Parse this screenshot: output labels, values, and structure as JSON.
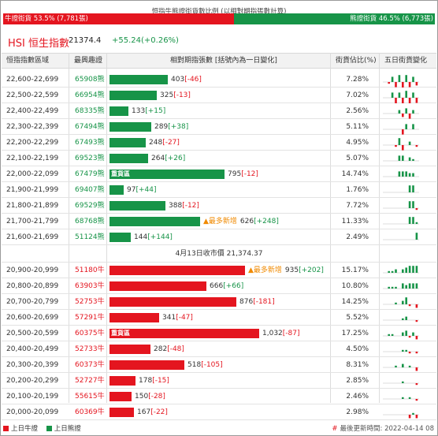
{
  "ratio": {
    "title": "恒指牛熊證街貨數比例 (以相對期指張數計算)",
    "bull_label": "牛證街貨 53.5% (7,781張)",
    "bear_label": "熊證街貨 46.5% (6,773張)",
    "bull_pct": 53.5
  },
  "index": {
    "name": "HSI 恒生指數",
    "value": "21374.4",
    "change": "+55.24(+0.26%)"
  },
  "headers": {
    "range": "恒指指數區域",
    "code": "最興趣證",
    "contracts": "相對期指張數 [括號內為一日變化]",
    "ratio": "街貨佔比(%)",
    "five_day": "五日街貨變化"
  },
  "colors": {
    "bull": "#e4151f",
    "bear": "#179448",
    "new_highlight": "#f08a00"
  },
  "heavy_label": "重貨區",
  "new_label": "▲最多新增",
  "bear_rows": [
    {
      "range": "22,600-22,699",
      "code": "65908熊",
      "qty": 403,
      "qty_text": "403",
      "chg": "[-46]",
      "pct": "7.28%",
      "spark": [
        0,
        -1,
        3,
        -3,
        4,
        -4,
        4,
        -3,
        3,
        -2
      ]
    },
    {
      "range": "22,500-22,599",
      "code": "66954熊",
      "qty": 325,
      "qty_text": "325",
      "chg": "[-13]",
      "pct": "7.02%",
      "spark": [
        0,
        0,
        3,
        -4,
        3,
        -4,
        4,
        -4,
        3,
        -3
      ]
    },
    {
      "range": "22,400-22,499",
      "code": "68335熊",
      "qty": 133,
      "qty_text": "133",
      "chg": "[+15]",
      "pct": "2.56%",
      "spark": [
        0,
        0,
        0,
        0,
        2,
        -2,
        3,
        -3,
        2,
        0
      ]
    },
    {
      "range": "22,300-22,399",
      "code": "67494熊",
      "qty": 289,
      "qty_text": "289",
      "chg": "[+38]",
      "pct": "5.11%",
      "spark": [
        0,
        0,
        0,
        0,
        0,
        -3,
        3,
        0,
        3,
        0
      ]
    },
    {
      "range": "22,200-22,299",
      "code": "67493熊",
      "qty": 248,
      "qty_text": "248",
      "chg": "[-27]",
      "pct": "4.95%",
      "spark": [
        0,
        0,
        0,
        -1,
        4,
        -3,
        0,
        2,
        0,
        -1
      ]
    },
    {
      "range": "22,100-22,199",
      "code": "69523熊",
      "qty": 264,
      "qty_text": "264",
      "chg": "[+26]",
      "pct": "5.07%",
      "spark": [
        0,
        0,
        0,
        0,
        3,
        3,
        0,
        2,
        1,
        0
      ]
    },
    {
      "range": "22,000-22,099",
      "code": "67479熊",
      "qty": 795,
      "qty_text": "795",
      "chg": "[-12]",
      "pct": "14.74%",
      "heavy": true,
      "spark": [
        0,
        0,
        0,
        0,
        3,
        3,
        3,
        2,
        2,
        0
      ]
    },
    {
      "range": "21,900-21,999",
      "code": "69407熊",
      "qty": 97,
      "qty_text": "97",
      "chg": "[+44]",
      "pct": "1.76%",
      "spark": [
        0,
        0,
        0,
        0,
        0,
        0,
        0,
        4,
        4,
        0
      ]
    },
    {
      "range": "21,800-21,899",
      "code": "69529熊",
      "qty": 388,
      "qty_text": "388",
      "chg": "[-12]",
      "pct": "7.72%",
      "spark": [
        0,
        0,
        0,
        0,
        0,
        0,
        0,
        4,
        4,
        -1
      ]
    },
    {
      "range": "21,700-21,799",
      "code": "68768熊",
      "qty": 626,
      "qty_text": "626",
      "chg": "[+248]",
      "pct": "11.33%",
      "new": true,
      "spark": [
        0,
        0,
        0,
        0,
        0,
        0,
        0,
        4,
        4,
        1
      ]
    },
    {
      "range": "21,600-21,699",
      "code": "51124熊",
      "qty": 144,
      "qty_text": "144",
      "chg": "[+144]",
      "pct": "2.49%",
      "spark": [
        0,
        0,
        0,
        0,
        0,
        0,
        0,
        0,
        0,
        4
      ]
    }
  ],
  "separator": "4月13日收市價 21,374.37",
  "bull_rows": [
    {
      "range": "20,900-20,999",
      "code": "51180牛",
      "qty": 935,
      "qty_text": "935",
      "chg": "[+202]",
      "pct": "15.17%",
      "new": true,
      "spark": [
        0,
        1,
        1,
        2,
        0,
        2,
        3,
        4,
        4,
        4
      ]
    },
    {
      "range": "20,800-20,899",
      "code": "63903牛",
      "qty": 666,
      "qty_text": "666",
      "chg": "[+66]",
      "pct": "10.80%",
      "spark": [
        0,
        1,
        1,
        1,
        0,
        3,
        2,
        3,
        3,
        3
      ]
    },
    {
      "range": "20,700-20,799",
      "code": "52753牛",
      "qty": 876,
      "qty_text": "876",
      "chg": "[-181]",
      "pct": "14.25%",
      "spark": [
        0,
        0,
        0,
        1,
        0,
        2,
        4,
        -1,
        0,
        -2
      ]
    },
    {
      "range": "20,600-20,699",
      "code": "57291牛",
      "qty": 341,
      "qty_text": "341",
      "chg": "[-47]",
      "pct": "5.52%",
      "spark": [
        0,
        0,
        0,
        0,
        0,
        1,
        2,
        0,
        0,
        -1
      ]
    },
    {
      "range": "20,500-20,599",
      "code": "60375牛",
      "qty": 1032,
      "qty_text": "1,032",
      "chg": "[-87]",
      "pct": "17.25%",
      "heavy": true,
      "spark": [
        0,
        1,
        1,
        0,
        0,
        2,
        3,
        -1,
        2,
        -2
      ]
    },
    {
      "range": "20,400-20,499",
      "code": "52733牛",
      "qty": 282,
      "qty_text": "282",
      "chg": "[-48]",
      "pct": "4.50%",
      "spark": [
        0,
        0,
        0,
        0,
        0,
        1,
        1,
        -1,
        0,
        -1
      ]
    },
    {
      "range": "20,300-20,399",
      "code": "60373牛",
      "qty": 518,
      "qty_text": "518",
      "chg": "[-105]",
      "pct": "8.31%",
      "spark": [
        0,
        0,
        0,
        1,
        0,
        2,
        0,
        1,
        0,
        -2
      ]
    },
    {
      "range": "20,200-20,299",
      "code": "52727牛",
      "qty": 178,
      "qty_text": "178",
      "chg": "[-15]",
      "pct": "2.85%",
      "spark": [
        0,
        0,
        0,
        0,
        0,
        1,
        0,
        0,
        0,
        -1
      ]
    },
    {
      "range": "20,100-20,199",
      "code": "55615牛",
      "qty": 150,
      "qty_text": "150",
      "chg": "[-28]",
      "pct": "2.46%",
      "spark": [
        0,
        0,
        0,
        0,
        0,
        1,
        0,
        1,
        0,
        -1
      ]
    },
    {
      "range": "20,000-20,099",
      "code": "60369牛",
      "qty": 167,
      "qty_text": "167",
      "chg": "[-22]",
      "pct": "2.98%",
      "spark": [
        0,
        0,
        0,
        0,
        0,
        0,
        0,
        -2,
        1,
        -2
      ]
    }
  ],
  "legend": {
    "bull": "上日牛證",
    "bear": "上日熊證"
  },
  "updated": {
    "hash": "#",
    "label": "最後更新時間: 2022-04-14 08"
  }
}
